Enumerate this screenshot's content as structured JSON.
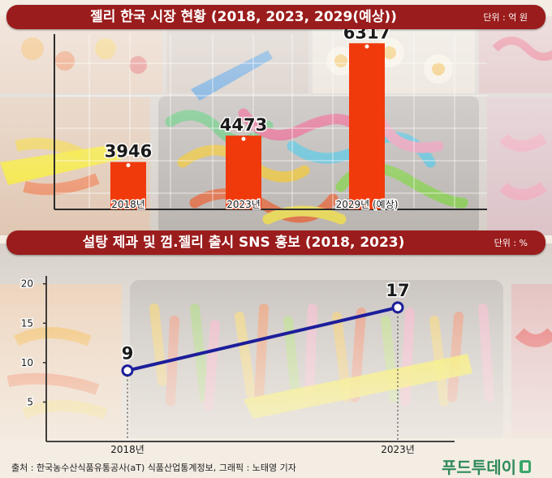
{
  "top_title": "젤리 한국 시장 현황 (2018, 2023, 2029(예상))",
  "top_unit": "단위 : 억 원",
  "bottom_title": "설탕 제과 및 껌.젤리 출시 SNS 홍보 (2018, 2023)",
  "bottom_unit": "단위 : %",
  "source": "출처 : 한국농수산식품유통공사(aT) 식품산업통계정보, 그래픽 : 노태영 기자",
  "logo": "푸드투데이",
  "colors": {
    "banner": "#9b1c1c",
    "bar": "#f03a0c",
    "line": "#1c1e9a",
    "logo": "#2f8a5a"
  },
  "chart_data": [
    {
      "type": "bar",
      "title": "젤리 한국 시장 현황 (2018, 2023, 2029(예상))",
      "unit": "단위 : 억 원",
      "categories": [
        "2018년",
        "2023년",
        "2029년 (예상)"
      ],
      "values": [
        3946,
        4473,
        6317
      ],
      "ylim": [
        3000,
        6500
      ],
      "grid": true
    },
    {
      "type": "line",
      "title": "설탕 제과 및 껌.젤리 출시 SNS 홍보 (2018, 2023)",
      "unit": "단위 : %",
      "categories": [
        "2018년",
        "2023년"
      ],
      "values": [
        9,
        17
      ],
      "yticks": [
        5,
        10,
        15,
        20
      ],
      "ylim": [
        0,
        21
      ],
      "grid": false
    }
  ]
}
